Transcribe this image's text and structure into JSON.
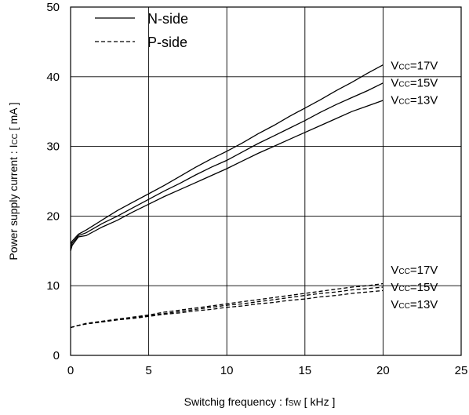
{
  "chart_data": {
    "type": "line",
    "xlabel": {
      "main": "Switchig frequency  :  f",
      "sub": "SW",
      "unit": " [ kHz ]"
    },
    "ylabel": {
      "main": "Power supply current : I",
      "sub": "CC",
      "unit": " [ mA ]"
    },
    "xlim": [
      0,
      25
    ],
    "ylim": [
      0,
      50
    ],
    "xticks": [
      0,
      5,
      10,
      15,
      20,
      25
    ],
    "yticks": [
      0,
      10,
      20,
      30,
      40,
      50
    ],
    "grid": true,
    "legend": {
      "position": "top-left",
      "items": [
        {
          "label": "N-side",
          "style": "solid"
        },
        {
          "label": "P-side",
          "style": "dashed"
        }
      ]
    },
    "series": [
      {
        "group": "N-side",
        "style": "solid",
        "vcc_label": "17V",
        "x": [
          0,
          0.1,
          0.5,
          1,
          2,
          3,
          4,
          5,
          6,
          7,
          8,
          9,
          10,
          11,
          12,
          13,
          14,
          15,
          16,
          17,
          18,
          19,
          20
        ],
        "y": [
          16.0,
          16.4,
          17.4,
          18.0,
          19.4,
          20.8,
          22.0,
          23.2,
          24.4,
          25.7,
          27.0,
          28.2,
          29.3,
          30.5,
          31.8,
          33.0,
          34.3,
          35.5,
          36.7,
          38.0,
          39.2,
          40.5,
          41.7
        ]
      },
      {
        "group": "N-side",
        "style": "solid",
        "vcc_label": "15V",
        "x": [
          0,
          0.1,
          0.5,
          1,
          2,
          3,
          4,
          5,
          6,
          7,
          8,
          9,
          10,
          11,
          12,
          13,
          14,
          15,
          16,
          17,
          18,
          19,
          20
        ],
        "y": [
          15.5,
          16.1,
          17.2,
          17.6,
          18.9,
          20.0,
          21.2,
          22.4,
          23.6,
          24.7,
          25.9,
          27.0,
          28.0,
          29.2,
          30.4,
          31.5,
          32.6,
          33.7,
          34.9,
          36.0,
          37.0,
          38.0,
          39.1
        ]
      },
      {
        "group": "N-side",
        "style": "solid",
        "vcc_label": "13V",
        "x": [
          0,
          0.1,
          0.5,
          1,
          2,
          3,
          4,
          5,
          6,
          7,
          8,
          9,
          10,
          11,
          12,
          13,
          14,
          15,
          16,
          17,
          18,
          19,
          20
        ],
        "y": [
          15.0,
          15.8,
          17.0,
          17.2,
          18.4,
          19.4,
          20.6,
          21.7,
          22.8,
          23.8,
          24.8,
          25.8,
          26.8,
          27.9,
          29.0,
          30.0,
          31.0,
          32.0,
          33.0,
          34.0,
          35.0,
          35.8,
          36.6
        ]
      },
      {
        "group": "P-side",
        "style": "dashed",
        "vcc_label": "17V",
        "x": [
          0,
          0.5,
          1,
          2,
          3,
          4,
          5,
          6,
          7,
          8,
          9,
          10,
          11,
          12,
          13,
          14,
          15,
          16,
          17,
          18,
          19,
          20
        ],
        "y": [
          4.0,
          4.3,
          4.6,
          4.9,
          5.2,
          5.5,
          5.8,
          6.2,
          6.5,
          6.8,
          7.1,
          7.4,
          7.7,
          8.0,
          8.3,
          8.6,
          8.9,
          9.2,
          9.5,
          9.8,
          10.0,
          10.3
        ]
      },
      {
        "group": "P-side",
        "style": "dashed",
        "vcc_label": "15V",
        "x": [
          0,
          0.5,
          1,
          2,
          3,
          4,
          5,
          6,
          7,
          8,
          9,
          10,
          11,
          12,
          13,
          14,
          15,
          16,
          17,
          18,
          19,
          20
        ],
        "y": [
          4.0,
          4.3,
          4.5,
          4.8,
          5.1,
          5.4,
          5.7,
          6.0,
          6.3,
          6.6,
          6.9,
          7.2,
          7.4,
          7.7,
          8.0,
          8.3,
          8.6,
          8.9,
          9.1,
          9.4,
          9.6,
          9.8
        ]
      },
      {
        "group": "P-side",
        "style": "dashed",
        "vcc_label": "13V",
        "x": [
          0,
          0.5,
          1,
          2,
          3,
          4,
          5,
          6,
          7,
          8,
          9,
          10,
          11,
          12,
          13,
          14,
          15,
          16,
          17,
          18,
          19,
          20
        ],
        "y": [
          4.0,
          4.3,
          4.5,
          4.8,
          5.1,
          5.3,
          5.6,
          5.9,
          6.1,
          6.4,
          6.6,
          6.9,
          7.1,
          7.4,
          7.6,
          7.9,
          8.1,
          8.4,
          8.6,
          8.9,
          9.1,
          9.3
        ]
      }
    ],
    "vcc_prefix": "V",
    "vcc_sub": "CC",
    "vcc_sep": "="
  }
}
